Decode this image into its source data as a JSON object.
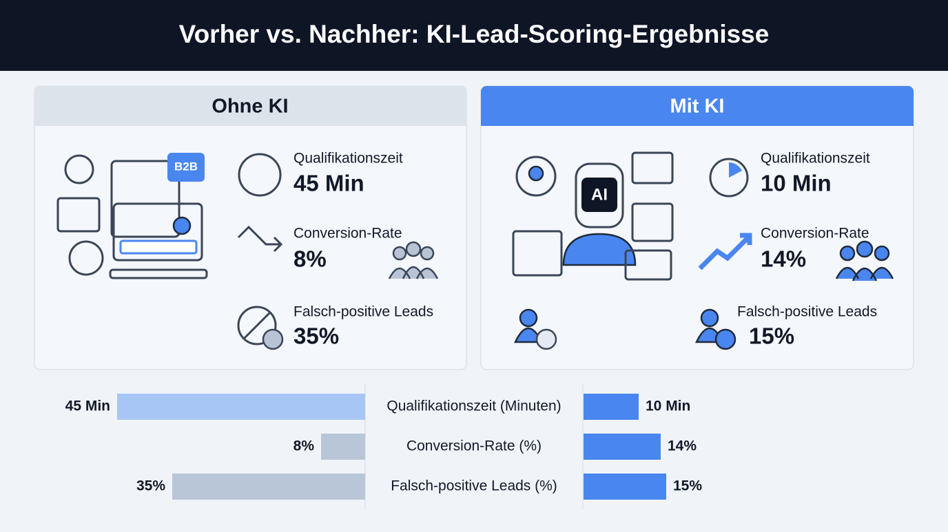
{
  "header": {
    "title": "Vorher vs. Nachher: KI-Lead-Scoring-Ergebnisse"
  },
  "panels": [
    {
      "title": "Ohne KI",
      "metrics": [
        {
          "label": "Qualifikationszeit",
          "value": "45 Min"
        },
        {
          "label": "Conversion-Rate",
          "value": "8%"
        },
        {
          "label": "Falsch-positive Leads",
          "value": "35%"
        }
      ],
      "badge": "B2B"
    },
    {
      "title": "Mit KI",
      "metrics": [
        {
          "label": "Qualifikationszeit",
          "value": "10 Min"
        },
        {
          "label": "Conversion-Rate",
          "value": "14%"
        },
        {
          "label": "Falsch-positive Leads",
          "value": "15%"
        }
      ],
      "badge": "AI"
    }
  ],
  "chart_data": {
    "type": "bar",
    "orientation": "butterfly",
    "categories": [
      "Qualifikationszeit (Minuten)",
      "Conversion-Rate (%)",
      "Falsch-positive Leads (%)"
    ],
    "series": [
      {
        "colors": [
          "#a8c6f5",
          "#b8c6d8",
          "#b8c6d8"
        ],
        "values": [
          45,
          8,
          35
        ],
        "value_labels": [
          "45 Min",
          "8%",
          "35%"
        ]
      },
      {
        "color": "#4a86f0",
        "values": [
          10,
          14,
          15
        ],
        "value_labels": [
          "10 Min",
          "14%",
          "15%"
        ]
      }
    ]
  }
}
